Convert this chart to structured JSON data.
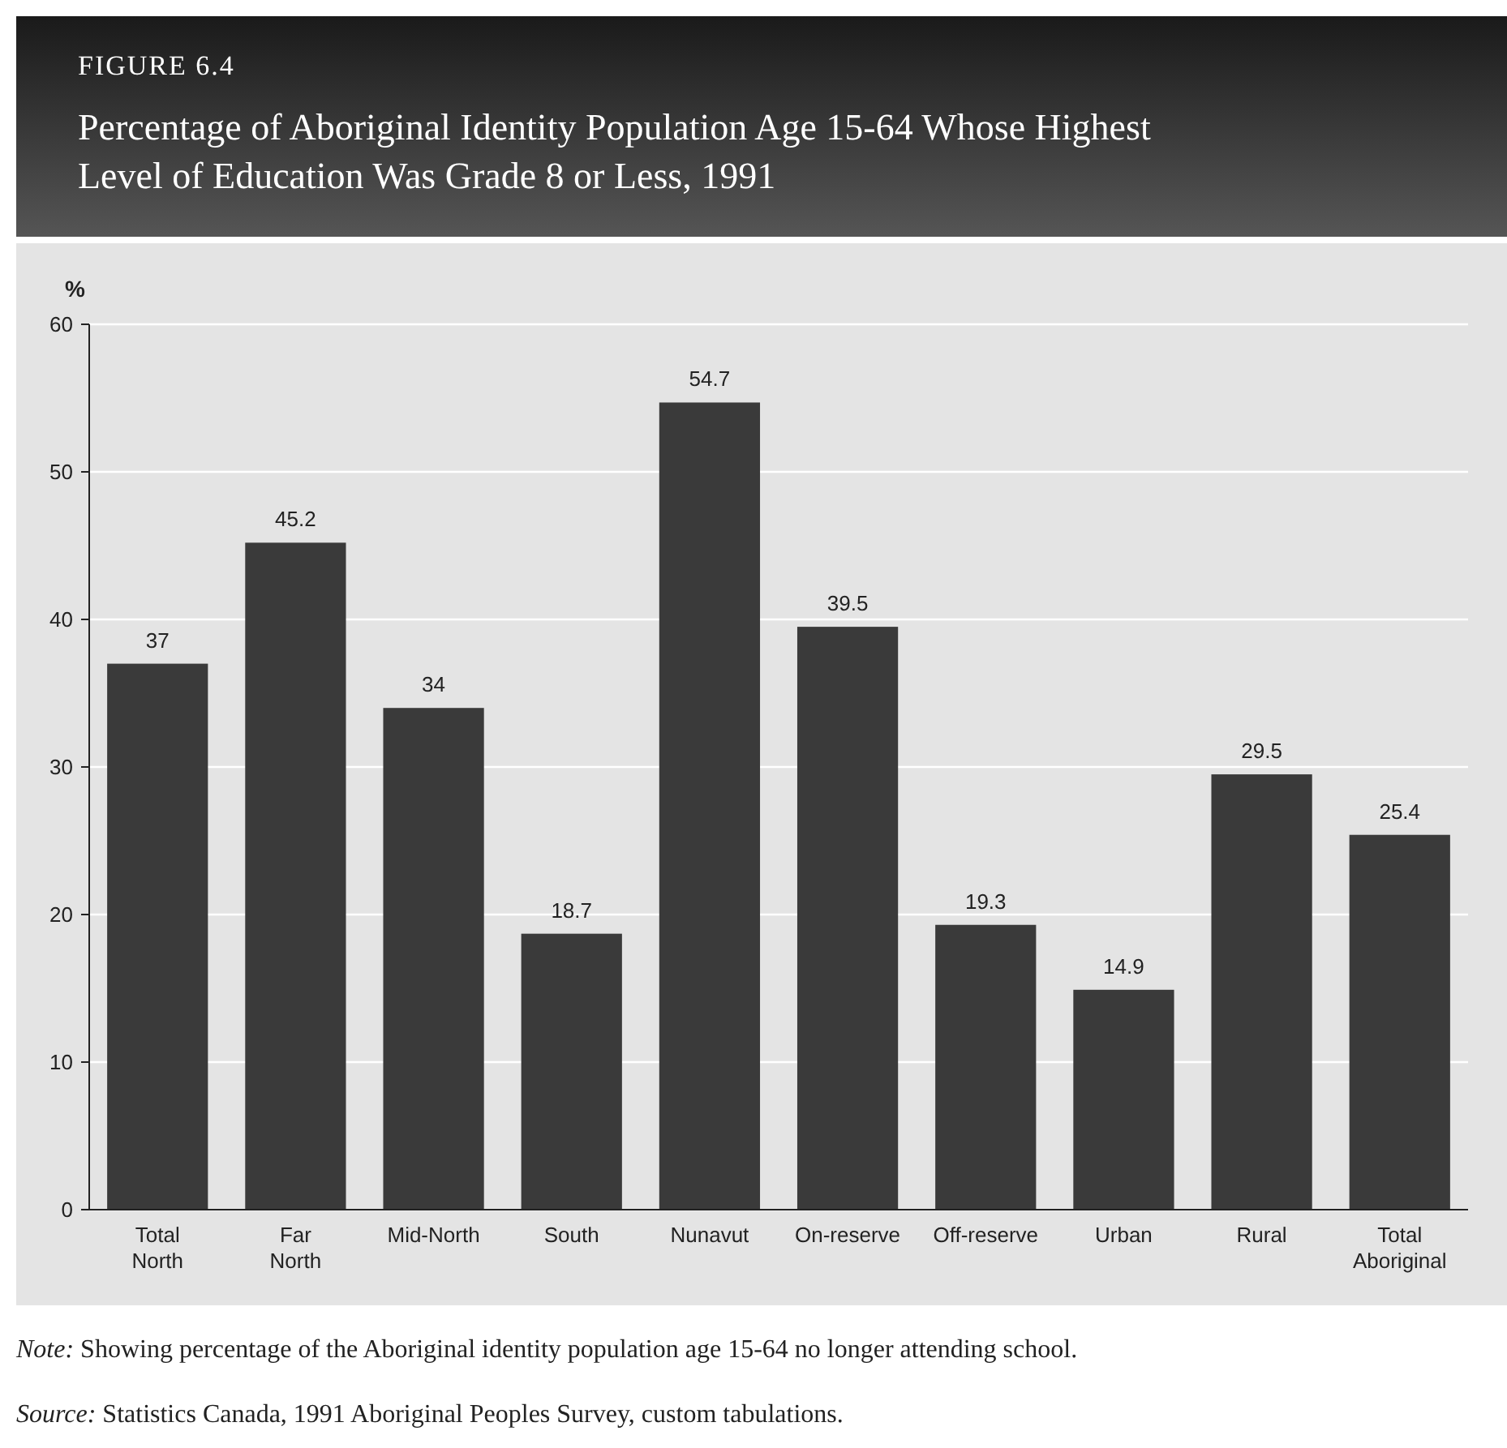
{
  "chart_data": {
    "type": "bar",
    "title": "Percentage of Aboriginal Identity Population Age 15-64 Whose Highest Level of Education Was Grade 8 or Less, 1991",
    "ylabel": "%",
    "categories": [
      "Total North",
      "Far North",
      "Mid-North",
      "South",
      "Nunavut",
      "On-reserve",
      "Off-reserve",
      "Urban",
      "Rural",
      "Total Aboriginal"
    ],
    "values": [
      37,
      45.2,
      34,
      18.7,
      54.7,
      39.5,
      19.3,
      14.9,
      29.5,
      25.4
    ],
    "color": "#3a3a3a",
    "ylim": [
      0,
      60
    ],
    "yticks": [
      0,
      10,
      20,
      30,
      40,
      50,
      60
    ],
    "grid": "y",
    "data_labels": true,
    "annotations": [
      "FIGURE 6.4",
      "Note: Showing percentage of the Aboriginal identity population age 15-64 no longer attending school.",
      "Source: Statistics Canada, 1991 Aboriginal Peoples Survey, custom tabulations."
    ]
  }
}
